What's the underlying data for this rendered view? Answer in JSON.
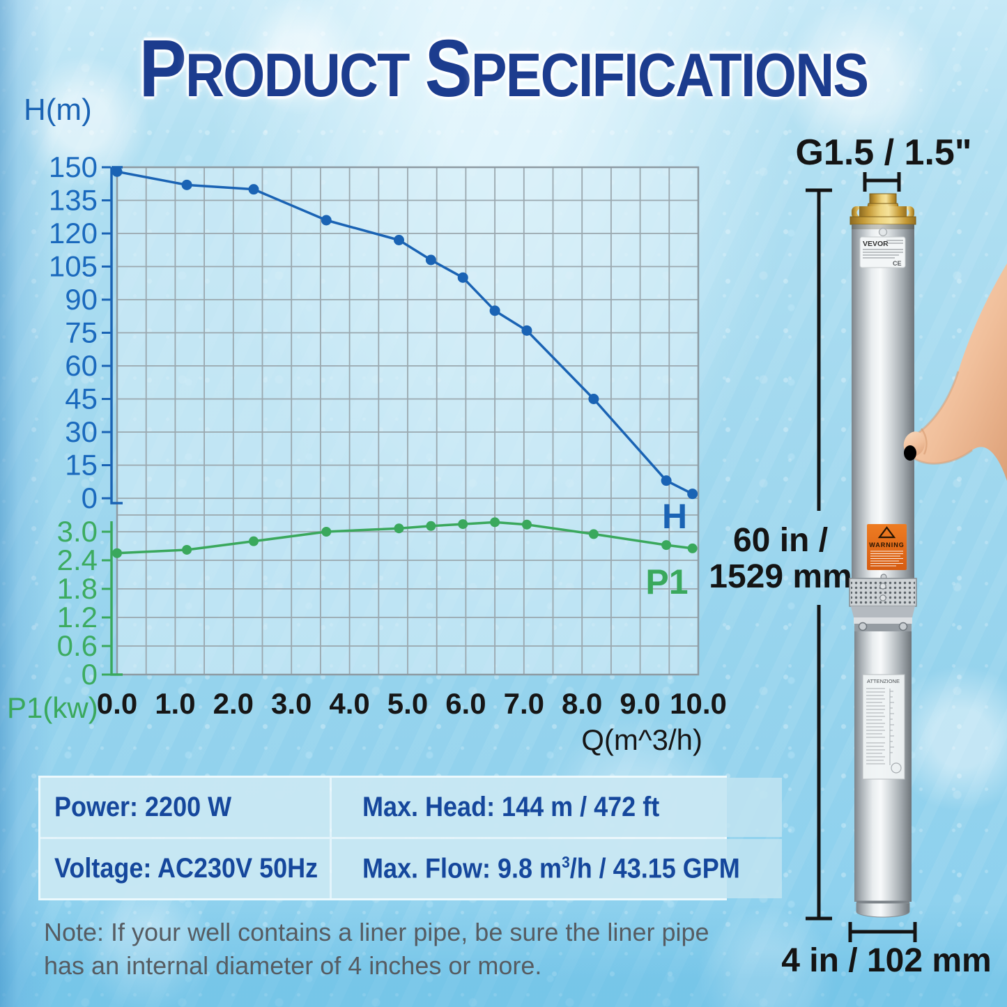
{
  "title": {
    "word1_initial": "P",
    "word1_rest": "RODUCT",
    "word2_initial": "S",
    "word2_rest": "PECIFICATIONS"
  },
  "chart": {
    "h_axis_title": "H(m)",
    "p1_axis_title": "P1(kw)",
    "x_axis_title": "Q(m^3/h)",
    "h_curve_label": "H",
    "p1_curve_label": "P1"
  },
  "chart_data": {
    "type": "line",
    "title": "Pump performance curves",
    "x_axis": {
      "label": "Q(m^3/h)",
      "range": [
        0,
        10
      ],
      "ticks": [
        "0.0",
        "1.0",
        "2.0",
        "3.0",
        "4.0",
        "5.0",
        "6.0",
        "7.0",
        "8.0",
        "9.0",
        "10.0"
      ]
    },
    "left_axis_top": {
      "label": "H(m)",
      "range": [
        0,
        150
      ],
      "ticks": [
        "150",
        "135",
        "120",
        "105",
        "90",
        "75",
        "60",
        "45",
        "30",
        "15",
        "0"
      ]
    },
    "left_axis_bottom": {
      "label": "P1(kw)",
      "range": [
        0,
        3.0
      ],
      "ticks": [
        "3.0",
        "2.4",
        "1.8",
        "1.2",
        "0.6",
        "0"
      ]
    },
    "grid": true,
    "legend_position": "right-on-plot",
    "series": [
      {
        "name": "H",
        "axis": "left_axis_top",
        "color": "#1a63b4",
        "x": [
          0.0,
          1.2,
          2.35,
          3.6,
          4.85,
          5.4,
          5.95,
          6.5,
          7.05,
          8.2,
          9.45,
          9.9
        ],
        "y": [
          148,
          142,
          140,
          126,
          117,
          108,
          100,
          85,
          76,
          45,
          8,
          2
        ]
      },
      {
        "name": "P1",
        "axis": "left_axis_bottom",
        "color": "#3aa85c",
        "x": [
          0.0,
          1.2,
          2.35,
          3.6,
          4.85,
          5.4,
          5.95,
          6.5,
          7.05,
          8.2,
          9.45,
          9.9
        ],
        "y": [
          2.55,
          2.62,
          2.8,
          3.0,
          3.07,
          3.12,
          3.16,
          3.2,
          3.15,
          2.95,
          2.72,
          2.65
        ]
      }
    ]
  },
  "pump": {
    "outlet_dimension": "G1.5 / 1.5\"",
    "height_dimension_line1": "60 in /",
    "height_dimension_line2": "1529 mm",
    "diameter_dimension": "4 in / 102 mm",
    "brand": "VEVOR",
    "warning_label": "WARNING",
    "lower_label": "ATTENZIONE"
  },
  "spec_table": {
    "power": "Power: 2200 W",
    "max_head": "Max. Head: 144 m / 472 ft",
    "voltage": "Voltage: AC230V 50Hz",
    "max_flow_prefix": "Max. Flow: 9.8 m",
    "max_flow_sup": "3",
    "max_flow_suffix": "/h / 43.15 GPM"
  },
  "note": "Note: If your well contains a liner pipe, be sure the liner pipe has an internal diameter of 4 inches or more.",
  "colors": {
    "h_curve": "#1a63b4",
    "p1_curve": "#3aa85c",
    "x_labels": "#161616",
    "title": "#1c3c8e",
    "table_text": "#15479c",
    "grid": "#9aa7ae"
  }
}
